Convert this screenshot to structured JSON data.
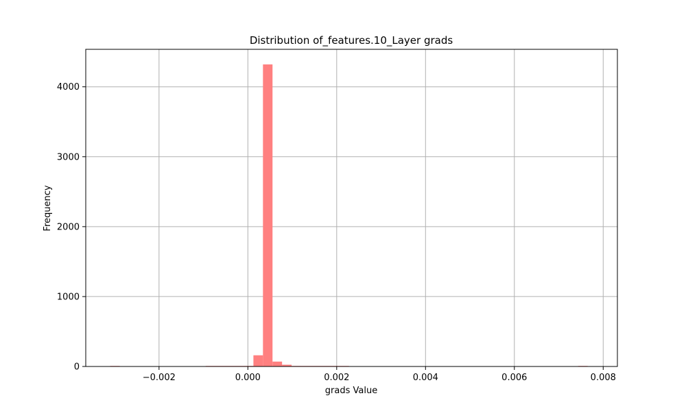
{
  "chart_data": {
    "type": "bar",
    "title": "Distribution of_features.10_Layer grads",
    "xlabel": "grads Value",
    "ylabel": "Frequency",
    "xlim": [
      -0.00365,
      0.00832
    ],
    "ylim": [
      0,
      4536
    ],
    "grid": true,
    "bar_color": "#ff8080",
    "x_ticks": [
      {
        "value": -0.002,
        "label": "−0.002"
      },
      {
        "value": 0.0,
        "label": "0.000"
      },
      {
        "value": 0.002,
        "label": "0.002"
      },
      {
        "value": 0.004,
        "label": "0.004"
      },
      {
        "value": 0.006,
        "label": "0.006"
      },
      {
        "value": 0.008,
        "label": "0.008"
      }
    ],
    "y_ticks": [
      {
        "value": 0,
        "label": "0"
      },
      {
        "value": 1000,
        "label": "1000"
      },
      {
        "value": 2000,
        "label": "2000"
      },
      {
        "value": 3000,
        "label": "3000"
      },
      {
        "value": 4000,
        "label": "4000"
      }
    ],
    "bin_start": -0.0031,
    "bin_width": 0.000215,
    "counts": [
      1,
      0,
      0,
      0,
      0,
      0,
      0,
      0,
      0,
      0,
      1,
      1,
      2,
      3,
      8,
      160,
      4320,
      70,
      25,
      8,
      3,
      2,
      1,
      1,
      1,
      0,
      0,
      0,
      0,
      0,
      0,
      0,
      0,
      0,
      0,
      0,
      0,
      0,
      0,
      0,
      0,
      0,
      0,
      0,
      0,
      0,
      0,
      0,
      0,
      1
    ]
  }
}
